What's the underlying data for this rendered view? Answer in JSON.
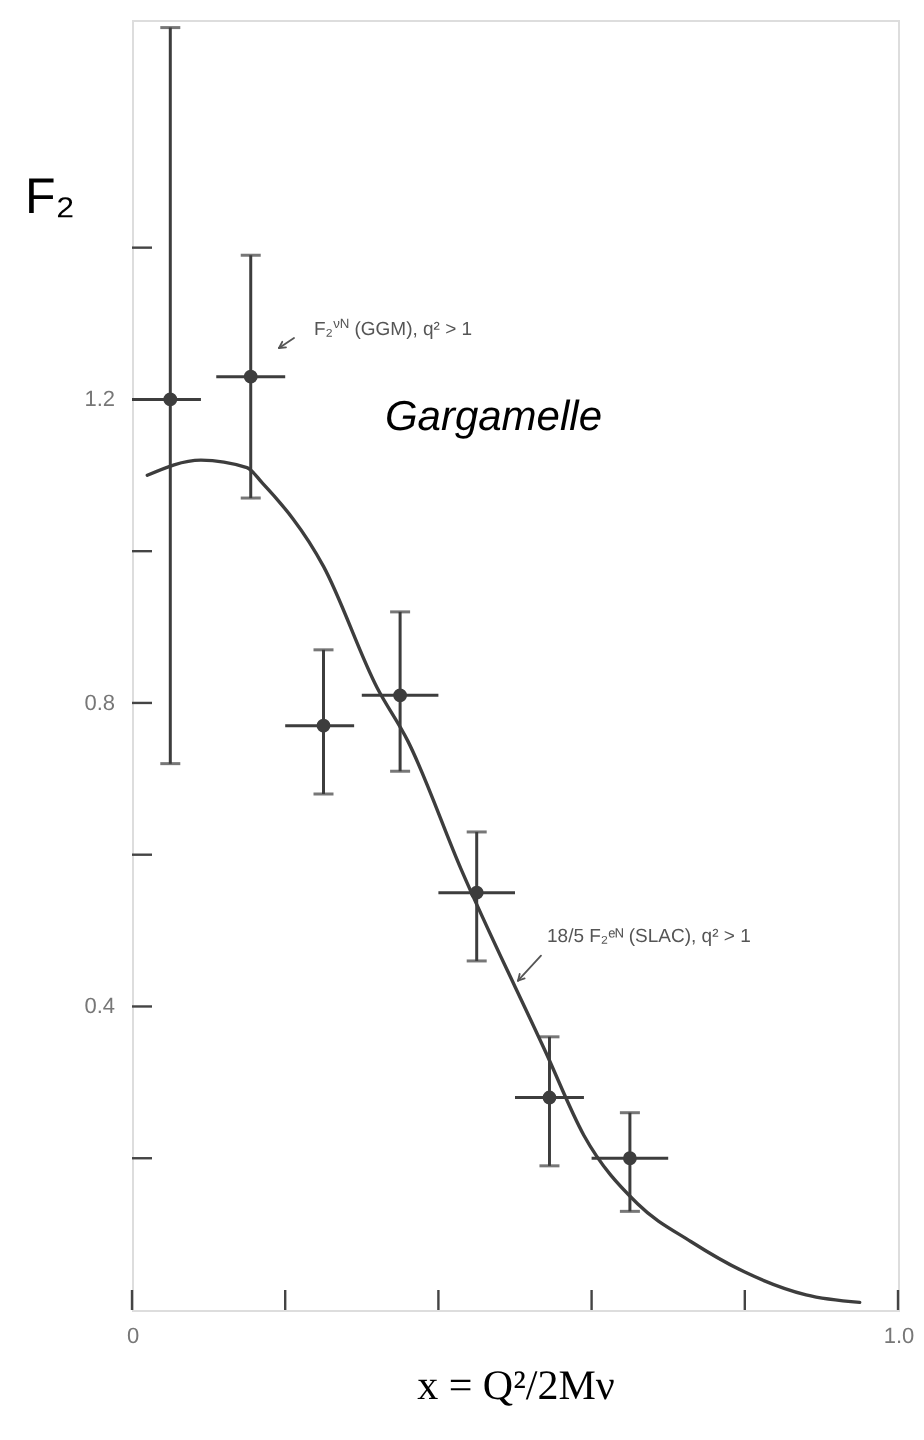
{
  "chart_data": {
    "type": "scatter",
    "ylabel": "F₂",
    "xlabel": "x = Q²/2Mν",
    "xlim": [
      0,
      1
    ],
    "ylim": [
      0,
      1.7
    ],
    "xticks": [
      0,
      {
        "value": 0.2,
        "label": null
      },
      {
        "value": 0.4,
        "label": null
      },
      {
        "value": 0.6,
        "label": null
      },
      {
        "value": 0.8,
        "label": null
      },
      {
        "value": 1,
        "label": "1.0"
      }
    ],
    "yticks": [
      {
        "value": 0.2,
        "label": null
      },
      0.4,
      {
        "value": 0.6,
        "label": null
      },
      0.8,
      {
        "value": 1.0,
        "label": null
      },
      1.2,
      {
        "value": 1.4,
        "label": null
      }
    ],
    "annotations": [
      "F₂$^{νN}$ (GGM), q² > 1",
      "Gargamelle",
      {
        "text": "18/5 F₂ᵉᴺ (SLAC), q² > 1",
        "x": 0.5,
        "y": 0.43
      }
    ],
    "series": [
      {
        "type": "line",
        "color": "#3d3d3d",
        "line_style": "solid",
        "x": [
          0.02,
          0.09,
          0.15,
          0.17,
          0.25,
          0.32,
          0.36,
          0.43,
          0.54,
          0.59,
          0.66,
          0.73,
          0.8,
          0.88,
          0.95
        ],
        "values": [
          1.1,
          1.12,
          1.11,
          1.09,
          0.98,
          0.82,
          0.75,
          0.58,
          0.34,
          0.23,
          0.14,
          0.09,
          0.05,
          0.02,
          0.01
        ]
      },
      {
        "color": "#3d3d3d",
        "marker": "circle",
        "x": [
          0.05,
          0.155,
          0.25,
          0.35,
          0.45,
          0.545,
          0.65
        ],
        "values": [
          1.2,
          1.23,
          0.77,
          0.81,
          0.55,
          0.28,
          0.2
        ],
        "errors": [
          [
            0.72,
            1.69
          ],
          [
            1.07,
            1.39
          ],
          [
            0.68,
            0.87
          ],
          [
            0.71,
            0.92
          ],
          [
            0.46,
            0.63
          ],
          [
            0.19,
            0.36
          ],
          [
            0.13,
            0.26
          ]
        ],
        "xerrors": [
          [
            0.0,
            0.09
          ],
          [
            0.11,
            0.2
          ],
          [
            0.2,
            0.29
          ],
          [
            0.3,
            0.4
          ],
          [
            0.4,
            0.5
          ],
          [
            0.5,
            0.59
          ],
          [
            0.6,
            0.7
          ]
        ]
      }
    ]
  }
}
